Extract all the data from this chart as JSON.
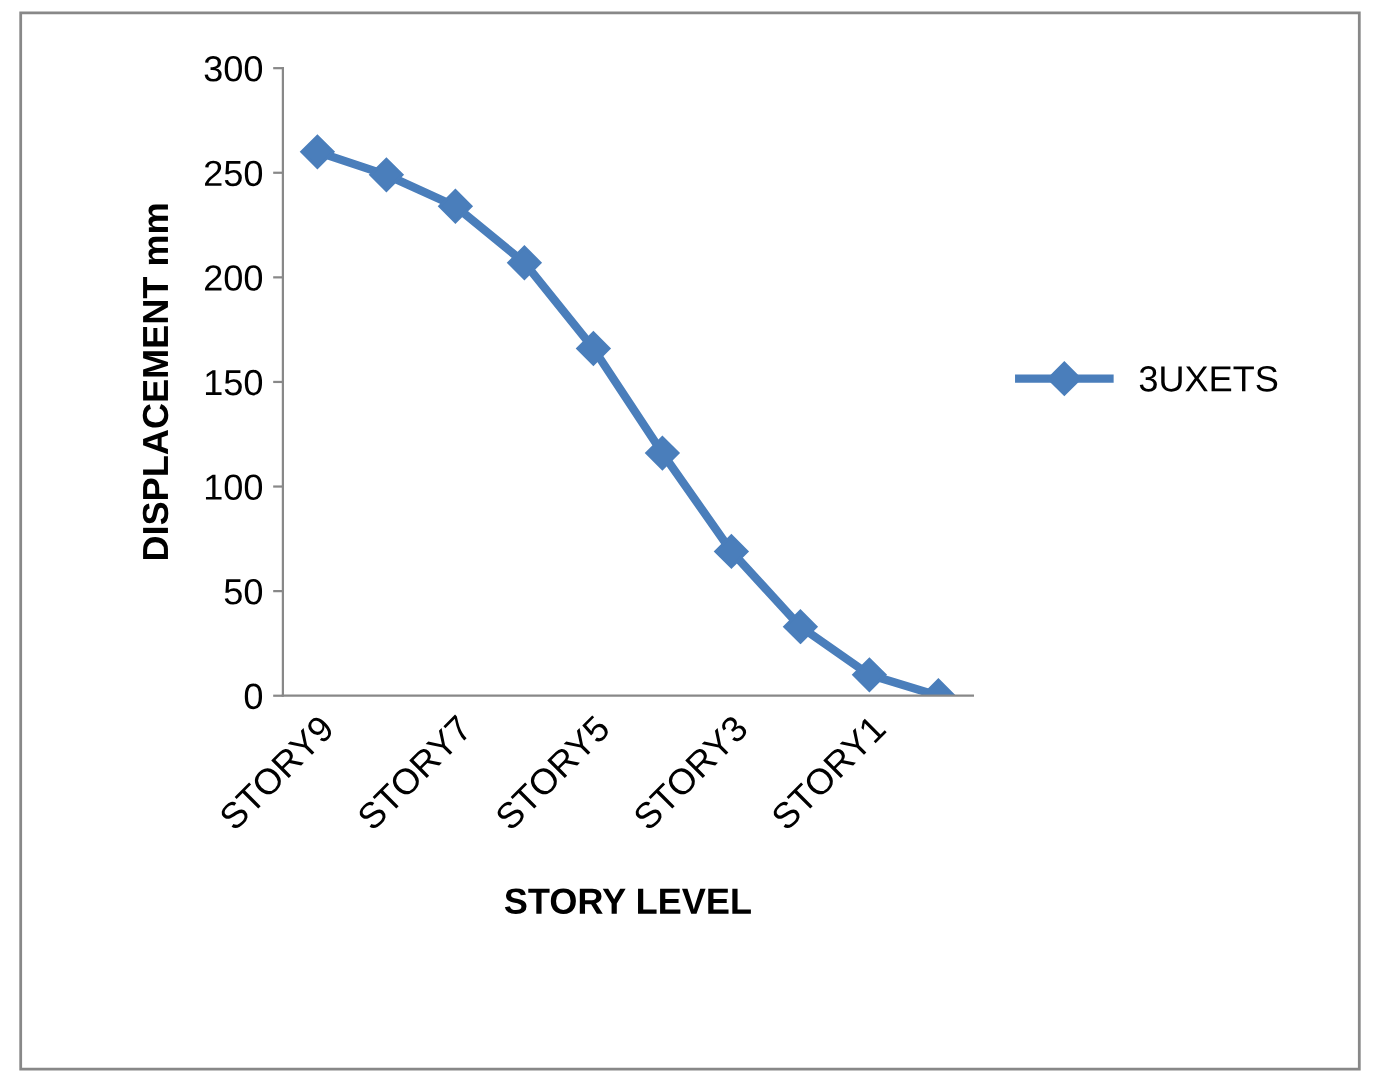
{
  "chart_data": {
    "type": "line",
    "xlabel": "STORY LEVEL",
    "ylabel": "DISPLACEMENT mm",
    "categories": [
      "STORY9",
      null,
      "STORY7",
      null,
      "STORY5",
      null,
      "STORY3",
      null,
      "STORY1",
      null
    ],
    "series": [
      {
        "name": "3UXETS",
        "color": "#4a7ebb",
        "values": [
          260,
          249,
          234,
          207,
          166,
          116,
          69,
          33,
          10,
          0
        ]
      }
    ],
    "ylim": [
      0,
      300
    ],
    "yticks": [
      0,
      50,
      100,
      150,
      200,
      250,
      300
    ],
    "grid": false,
    "legend": "right",
    "marker": "diamond",
    "line_style": "solid"
  }
}
